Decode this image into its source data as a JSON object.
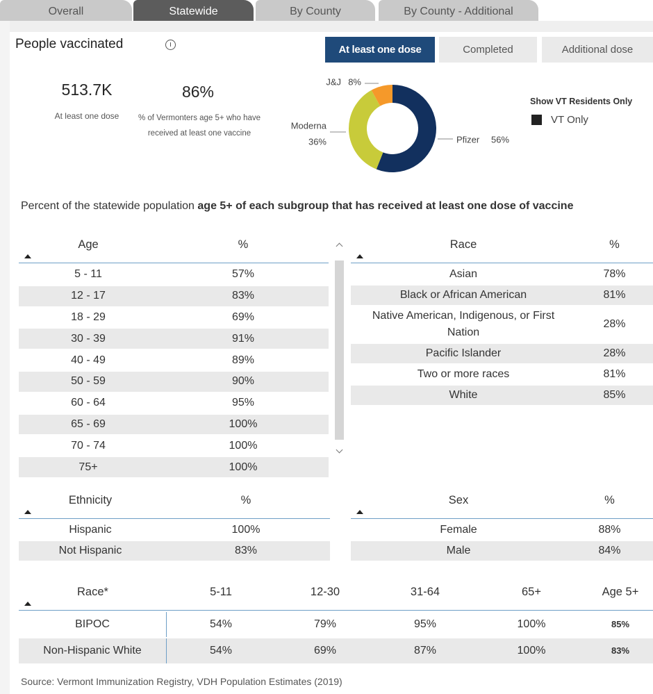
{
  "tabs": [
    "Overall",
    "Statewide",
    "By County",
    "By County - Additional"
  ],
  "header": {
    "title": "People vaccinated"
  },
  "dose_buttons": [
    "At least one dose",
    "Completed",
    "Additional dose"
  ],
  "kpis": [
    {
      "value": "513.7K",
      "label": "At least one dose"
    },
    {
      "value": "86%",
      "label": "% of Vermonters age 5+ who have received at least one vaccine"
    }
  ],
  "chart_data": {
    "type": "donut",
    "categories": [
      "Pfizer",
      "Moderna",
      "J&J"
    ],
    "values": [
      56,
      36,
      8
    ],
    "value_labels": [
      "56%",
      "36%",
      "8%"
    ],
    "colors": [
      "#12305e",
      "#c8cb3a",
      "#f5992a"
    ]
  },
  "filter": {
    "title": "Show VT Residents Only",
    "option": "VT Only"
  },
  "subtitle": {
    "text": "Percent of the statewide population ",
    "bold": "age 5+ of each subgroup that has received at least one dose of vaccine"
  },
  "tables": {
    "age": {
      "columns": [
        "Age",
        "%"
      ],
      "rows": [
        [
          "5 - 11",
          "57%"
        ],
        [
          "12 - 17",
          "83%"
        ],
        [
          "18 - 29",
          "69%"
        ],
        [
          "30 - 39",
          "91%"
        ],
        [
          "40 - 49",
          "89%"
        ],
        [
          "50 - 59",
          "90%"
        ],
        [
          "60 - 64",
          "95%"
        ],
        [
          "65 - 69",
          "100%"
        ],
        [
          "70 - 74",
          "100%"
        ],
        [
          "75+",
          "100%"
        ]
      ]
    },
    "race": {
      "columns": [
        "Race",
        "%"
      ],
      "rows": [
        [
          "Asian",
          "78%"
        ],
        [
          "Black or African American",
          "81%"
        ],
        [
          "Native American, Indigenous, or First Nation",
          "28%"
        ],
        [
          "Pacific Islander",
          "28%"
        ],
        [
          "Two or more races",
          "81%"
        ],
        [
          "White",
          "85%"
        ]
      ]
    },
    "ethnicity": {
      "columns": [
        "Ethnicity",
        "%"
      ],
      "rows": [
        [
          "Hispanic",
          "100%"
        ],
        [
          "Not Hispanic",
          "83%"
        ]
      ]
    },
    "sex": {
      "columns": [
        "Sex",
        "%"
      ],
      "rows": [
        [
          "Female",
          "88%"
        ],
        [
          "Male",
          "84%"
        ]
      ]
    },
    "race_age": {
      "columns": [
        "Race*",
        "5-11",
        "12-30",
        "31-64",
        "65+",
        "Age 5+"
      ],
      "rows": [
        [
          "BIPOC",
          "54%",
          "79%",
          "95%",
          "100%",
          "85%"
        ],
        [
          "Non-Hispanic White",
          "54%",
          "69%",
          "87%",
          "100%",
          "83%"
        ]
      ]
    }
  },
  "source": "Source: Vermont Immunization Registry, VDH Population Estimates (2019)"
}
